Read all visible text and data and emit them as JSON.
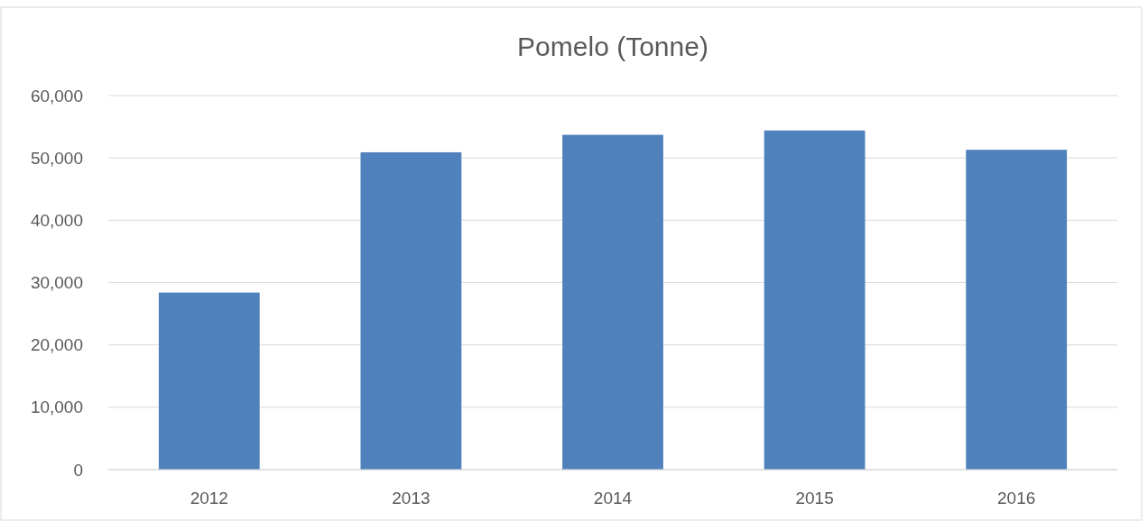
{
  "chart_data": {
    "type": "bar",
    "title": "Pomelo (Tonne)",
    "categories": [
      "2012",
      "2013",
      "2014",
      "2015",
      "2016"
    ],
    "values": [
      28400,
      50900,
      53700,
      54400,
      51300
    ],
    "color": "#4f81bd",
    "ylim": [
      0,
      60000
    ],
    "yticks": [
      {
        "value": 0,
        "label": "0"
      },
      {
        "value": 10000,
        "label": "10,000"
      },
      {
        "value": 20000,
        "label": "20,000"
      },
      {
        "value": 30000,
        "label": "30,000"
      },
      {
        "value": 40000,
        "label": "40,000"
      },
      {
        "value": 50000,
        "label": "50,000"
      },
      {
        "value": 60000,
        "label": "60,000"
      }
    ],
    "grid": "y"
  }
}
